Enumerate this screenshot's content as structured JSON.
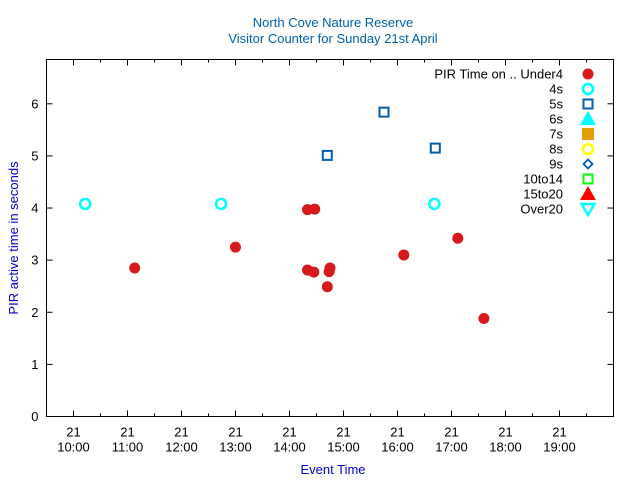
{
  "chart_data": {
    "type": "scatter",
    "title": "North Cove Nature Reserve",
    "subtitle": "Visitor Counter for Sunday 21st April",
    "xlabel": "Event Time",
    "ylabel": "PIR active time in seconds",
    "xlim": [
      "09:30",
      "20:00"
    ],
    "ylim": [
      0,
      6.85
    ],
    "x_ticks": [
      {
        "day": "21",
        "time": "10:00"
      },
      {
        "day": "21",
        "time": "11:00"
      },
      {
        "day": "21",
        "time": "12:00"
      },
      {
        "day": "21",
        "time": "13:00"
      },
      {
        "day": "21",
        "time": "14:00"
      },
      {
        "day": "21",
        "time": "15:00"
      },
      {
        "day": "21",
        "time": "16:00"
      },
      {
        "day": "21",
        "time": "17:00"
      },
      {
        "day": "21",
        "time": "18:00"
      },
      {
        "day": "21",
        "time": "19:00"
      }
    ],
    "y_ticks": [
      "0",
      "1",
      "2",
      "3",
      "4",
      "5",
      "6"
    ],
    "grid": false,
    "legend_position": "top-right",
    "series": [
      {
        "name": "PIR Time on .. Under4",
        "marker": "filled-circle",
        "color": "#d7191c",
        "points": [
          {
            "x": "11:08",
            "y": 2.85
          },
          {
            "x": "13:00",
            "y": 3.25
          },
          {
            "x": "14:20",
            "y": 3.97
          },
          {
            "x": "14:28",
            "y": 3.98
          },
          {
            "x": "14:20",
            "y": 2.81
          },
          {
            "x": "14:27",
            "y": 2.77
          },
          {
            "x": "14:42",
            "y": 2.49
          },
          {
            "x": "14:44",
            "y": 2.78
          },
          {
            "x": "14:45",
            "y": 2.85
          },
          {
            "x": "16:07",
            "y": 3.1
          },
          {
            "x": "17:07",
            "y": 3.42
          },
          {
            "x": "17:36",
            "y": 1.88
          }
        ]
      },
      {
        "name": "4s",
        "marker": "open-circle",
        "color": "#00ffff",
        "points": [
          {
            "x": "10:13",
            "y": 4.08
          },
          {
            "x": "12:44",
            "y": 4.08
          },
          {
            "x": "16:41",
            "y": 4.08
          }
        ]
      },
      {
        "name": "5s",
        "marker": "open-square",
        "color": "#0060ad",
        "points": [
          {
            "x": "14:42",
            "y": 5.01
          },
          {
            "x": "15:45",
            "y": 5.84
          },
          {
            "x": "16:42",
            "y": 5.15
          }
        ]
      },
      {
        "name": "6s",
        "marker": "filled-triangle-up",
        "color": "#00ffff",
        "points": []
      },
      {
        "name": "7s",
        "marker": "filled-square",
        "color": "#e69f00",
        "points": []
      },
      {
        "name": "8s",
        "marker": "open-circle",
        "color": "#ffff00",
        "points": []
      },
      {
        "name": "9s",
        "marker": "open-diamond",
        "color": "#0060ad",
        "points": []
      },
      {
        "name": "10to14",
        "marker": "open-square",
        "color": "#00ff00",
        "points": []
      },
      {
        "name": "15to20",
        "marker": "filled-triangle-up",
        "color": "#ff0000",
        "points": []
      },
      {
        "name": "Over20",
        "marker": "open-triangle-down",
        "color": "#00ffff",
        "points": []
      }
    ]
  },
  "colors": {
    "title": "#0060ad",
    "axis_label": "#0000cd",
    "axis": "#000000"
  }
}
